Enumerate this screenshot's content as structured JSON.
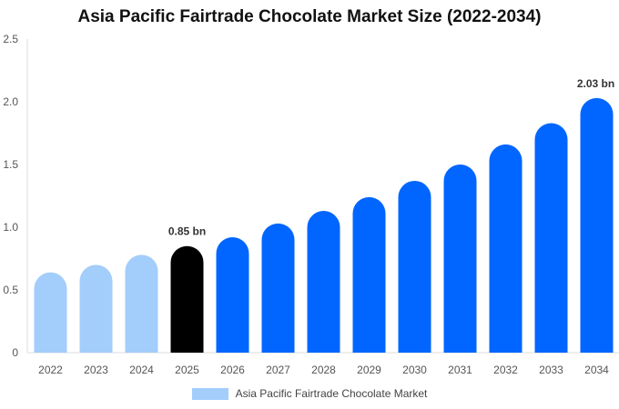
{
  "chart_data": {
    "type": "bar",
    "title": "Asia Pacific Fairtrade Chocolate Market Size (2022-2034)",
    "xlabel": "",
    "ylabel": "",
    "categories": [
      "2022",
      "2023",
      "2024",
      "2025",
      "2026",
      "2027",
      "2028",
      "2029",
      "2030",
      "2031",
      "2032",
      "2033",
      "2034"
    ],
    "series": [
      {
        "name": "Asia Pacific Fairtrade Chocolate Market",
        "values": [
          0.64,
          0.7,
          0.78,
          0.85,
          0.92,
          1.03,
          1.13,
          1.24,
          1.37,
          1.5,
          1.66,
          1.83,
          2.03
        ]
      }
    ],
    "ylim": [
      0,
      2.5
    ],
    "yticks": [
      "0",
      "0.5",
      "1.0",
      "1.5",
      "2.0",
      "2.5"
    ],
    "ytick_values": [
      0,
      0.5,
      1.0,
      1.5,
      2.0,
      2.5
    ],
    "grid": false,
    "legend_position": "bottom-center",
    "annotations": [
      {
        "category": "2025",
        "text": "0.85 bn"
      },
      {
        "category": "2034",
        "text": "2.03 bn"
      }
    ],
    "colors": {
      "history": "#a3cdfb",
      "current": "#000000",
      "forecast": "#0066ff",
      "legend": "#a3cdfb",
      "axis": "#dddddd"
    },
    "color_groups": [
      "history",
      "history",
      "history",
      "current",
      "forecast",
      "forecast",
      "forecast",
      "forecast",
      "forecast",
      "forecast",
      "forecast",
      "forecast",
      "forecast"
    ]
  }
}
